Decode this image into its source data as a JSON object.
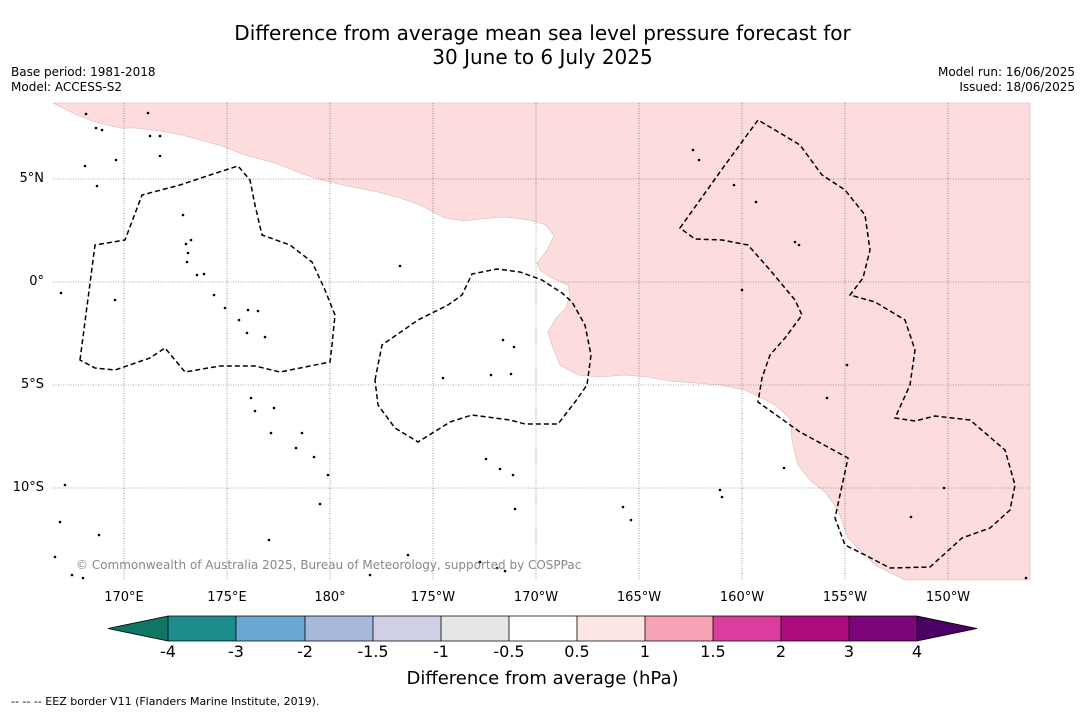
{
  "title": {
    "line1": "Difference from average mean sea level pressure forecast for",
    "line2": "30 June to 6 July 2025"
  },
  "meta_left": {
    "base_period": "Base period: 1981-2018",
    "model": "Model: ACCESS-S2"
  },
  "meta_right": {
    "model_run": "Model run: 16/06/2025",
    "issued": "Issued: 18/06/2025"
  },
  "map": {
    "lat_labels": [
      "5°N",
      "0°",
      "5°S",
      "10°S"
    ],
    "lon_labels": [
      "170°E",
      "175°E",
      "180°",
      "175°W",
      "170°W",
      "165°W",
      "160°W",
      "155°W",
      "150°W"
    ],
    "copyright": "© Commonwealth of Australia 2025, Bureau of Meteorology, supported by COSPPac",
    "fill_color": "#fcdcdc",
    "eez_style": "dashed black"
  },
  "colorbar": {
    "ticks": [
      "-4",
      "-3",
      "-2",
      "-1.5",
      "-1",
      "-0.5",
      "0.5",
      "1",
      "1.5",
      "2",
      "3",
      "4"
    ],
    "colors": [
      "#1d8c8c",
      "#6aa8d2",
      "#a6b8dc",
      "#cfd0e6",
      "#e6e6e6",
      "#ffffff",
      "#fde6e4",
      "#f7a1b5",
      "#db3d9e",
      "#ad0a7e",
      "#7c0579"
    ],
    "low_color": "#0f7564",
    "high_color": "#4a0064",
    "label": "Difference from average (hPa)"
  },
  "footnote": "--  --  -- EEZ border V11 (Flanders Marine Institute, 2019)."
}
